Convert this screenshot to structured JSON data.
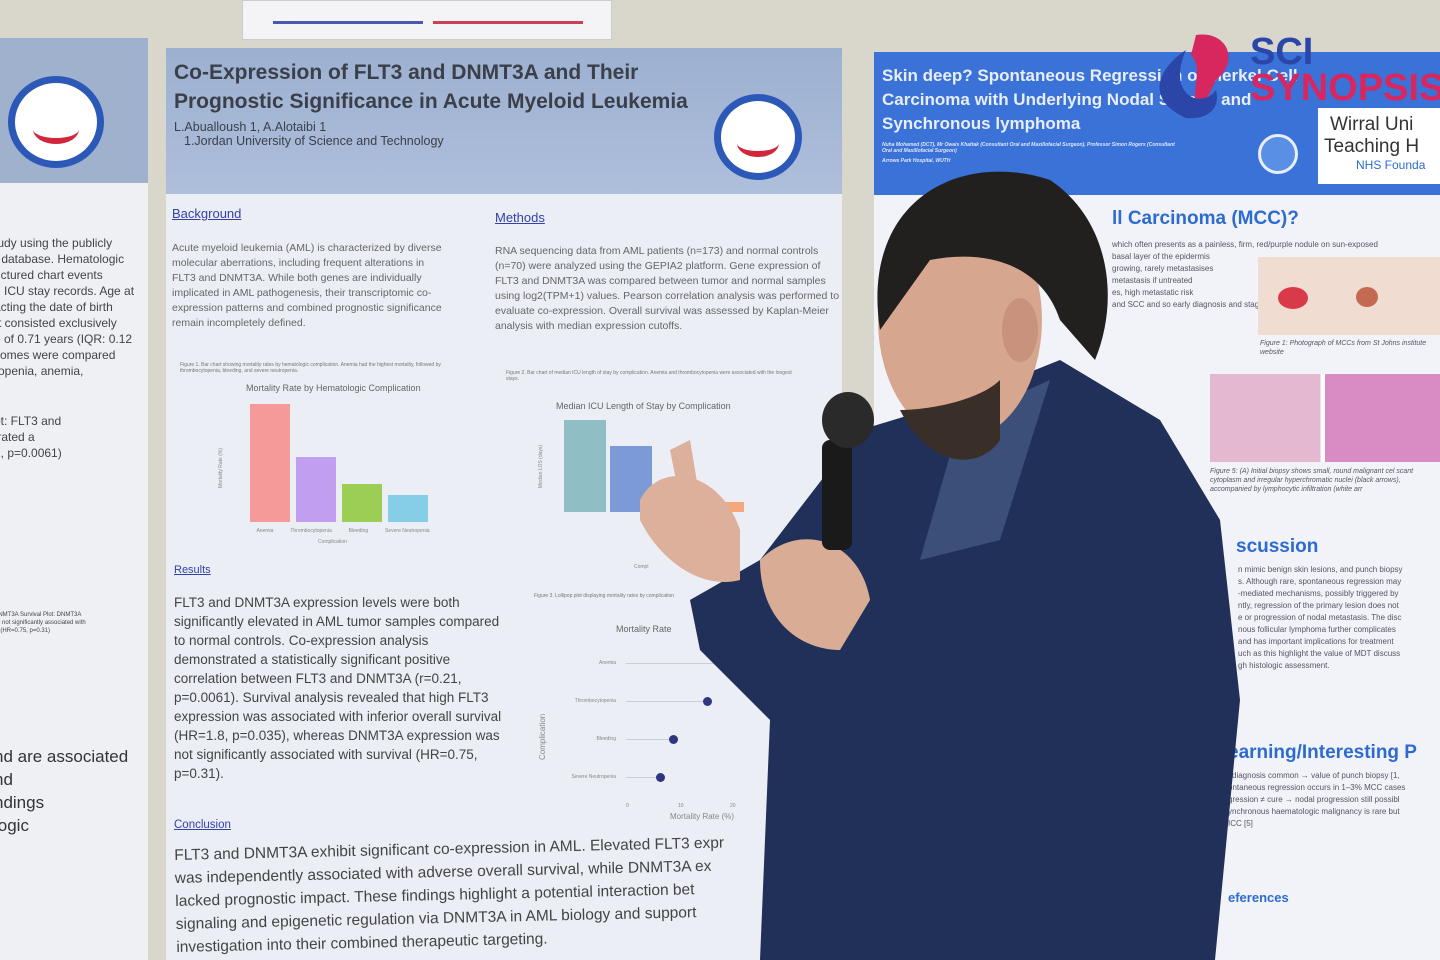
{
  "left_poster": {
    "lines": [
      "tudy using the publicly",
      ") database. Hematologic",
      "uctured chart events",
      "d ICU stay records. Age at",
      "acting the date of birth",
      "rt consisted exclusively",
      "e of 0.71 years (IQR: 0.12",
      "comes were compared",
      "ropenia, anemia,"
    ],
    "mid": [
      "ot: FLT3 and",
      "trated a",
      "1, p=0.0061)"
    ],
    "survival": [
      "DNMT3A Survival Plot: DNMT3A",
      "as not significantly associated with",
      "al (HR=0.75, p=0.31)"
    ],
    "bottom": [
      "nd are associated",
      "nd",
      "ndings",
      "logic"
    ]
  },
  "main_poster": {
    "title": "Co-Expression of FLT3 and DNMT3A and Their Prognostic Significance in Acute Myeloid Leukemia",
    "authors": "L.Abualloush 1, A.Alotaibi 1",
    "affiliation": "1.Jordan University of Science and Technology",
    "background_heading": "Background",
    "background_text": "Acute myeloid leukemia (AML) is characterized by diverse molecular aberrations, including frequent alterations in FLT3 and DNMT3A. While both genes are individually implicated in AML pathogenesis, their transcriptomic co-expression patterns and combined prognostic significance remain incompletely defined.",
    "methods_heading": "Methods",
    "methods_text": "RNA sequencing data from AML patients (n=173) and normal controls (n=70) were analyzed using the GEPIA2 platform. Gene expression of FLT3 and DNMT3A was compared between tumor and normal samples using log2(TPM+1) values. Pearson correlation analysis was performed to evaluate co-expression. Overall survival was assessed by Kaplan-Meier analysis with median expression cutoffs.",
    "fig1_caption": "Figure 1. Bar chart showing mortality rates by hematologic complication. Anemia had the highest mortality, followed by thrombocytopenia, bleeding, and severe neutropenia.",
    "fig1_title": "Mortality Rate by Hematologic Complication",
    "fig1_ylabel": "Mortality Rate (%)",
    "fig1_xlabel": "Complication",
    "fig1_categories": [
      "Anemia",
      "Thrombocytopenia",
      "Bleeding",
      "Severe Neutropenia"
    ],
    "fig1_values": [
      28,
      15.5,
      9,
      6.5
    ],
    "fig1_colors": [
      "#f59a98",
      "#c29ef0",
      "#9ccd55",
      "#86cde6"
    ],
    "fig2_caption": "Figure 2. Bar chart of median ICU length of stay by complication. Anemia and thrombocytopenia were associated with the longest stays.",
    "fig2_title": "Median ICU Length of Stay by Complication",
    "fig2_ylabel": "Median LOS (days)",
    "fig2_xlabel": "Compl",
    "fig2_values": [
      18,
      13,
      2
    ],
    "fig2_colors": [
      "#8fbfc4",
      "#7d9ad8",
      "#f5a87a"
    ],
    "results_heading": "Results",
    "results_text": "FLT3 and DNMT3A expression levels were both significantly elevated in AML tumor samples compared to normal controls. Co-expression analysis demonstrated a statistically significant positive correlation between FLT3 and DNMT3A (r=0.21, p=0.0061). Survival analysis revealed that high FLT3 expression was associated with inferior overall survival (HR=1.8, p=0.035), whereas DNMT3A expression was not significantly associated with survival (HR=0.75, p=0.31).",
    "fig3_caption": "Figure 3. Lollipop plot displaying mortality rates by complication",
    "fig3_title": "Mortality Rate",
    "fig3_ylabel": "Complication",
    "fig3_xlabel": "Mortality Rate (%)",
    "fig3_ticks": [
      "0",
      "10",
      "20"
    ],
    "fig3_categories": [
      "Anemia",
      "Thrombocytopenia",
      "Bleeding",
      "Severe Neutropenia"
    ],
    "fig3_values": [
      28,
      15.5,
      9,
      6.5
    ],
    "conclusion_heading": "Conclusion",
    "conclusion_lines": [
      "FLT3 and DNMT3A exhibit significant co-expression in AML. Elevated FLT3 expr",
      "was independently associated with adverse overall survival, while DNMT3A ex",
      "lacked prognostic impact. These findings highlight a potential interaction bet",
      "signaling and epigenetic regulation via DNMT3A in AML biology and support",
      "investigation into their combined therapeutic targeting."
    ]
  },
  "right_poster": {
    "title": "Skin deep? Spontaneous Regression of Merkel Cell Carcinoma with Underlying Nodal Spread and Synchronous lymphoma",
    "authors": "Nuha Mohamed (DCT), Mr Owais Khattak (Consultant Oral and Maxillofacial Surgeon), Professor Simon Rogers (Consultant Oral and Maxillofacial Surgeon)",
    "hospital": "Arrowe Park Hospital, WUTH",
    "org_line1": "Wirral Uni",
    "org_line2": "Teaching H",
    "org_line3": "NHS Founda",
    "section1": "ll Carcinoma (MCC)?",
    "s1_lines": [
      "which often presents as a painless, firm, red/purple nodule on sun-exposed",
      "basal layer of the epidermis",
      "growing, rarely metastasises",
      "metastasis if untreated",
      "es, high metastatic risk",
      "and SCC and so early diagnosis and staging are crucial."
    ],
    "fig1_caption": "Figure 1: Photograph of MCCs from St Johns institute website",
    "fig5_caption": "Figure 5: (A) Initial biopsy shows small, round malignant cel scant cytoplasm and irregular hyperchromatic nuclei (black arrows), accompanied by lymphocytic infiltration (white arr",
    "section2": "scussion",
    "s2_lines": [
      "n mimic benign skin lesions, and punch biopsy",
      "s. Although rare, spontaneous regression may",
      "-mediated mechanisms, possibly triggered by",
      "ntly, regression of the primary lesion does not",
      "e or progression of nodal metastasis. The disc",
      "nous follicular lymphoma further complicates",
      "and has important implications for treatment",
      "uch as this highlight the value of MDT discuss",
      "gh histologic assessment."
    ],
    "section3": "earning/Interesting P",
    "s3_lines": [
      "sdiagnosis common → value of punch biopsy [1,",
      "ontaneous regression occurs in 1–3% MCC cases",
      "gression ≠ cure → nodal progression still possibl",
      "ynchronous haematologic malignancy is rare but",
      "ICC [5]"
    ],
    "section4": "eferences"
  },
  "watermark": {
    "line1": "SCI",
    "line2": "SYNOPSIS",
    "colors": {
      "blue": "#2b46a8",
      "pink": "#d8275f"
    }
  }
}
